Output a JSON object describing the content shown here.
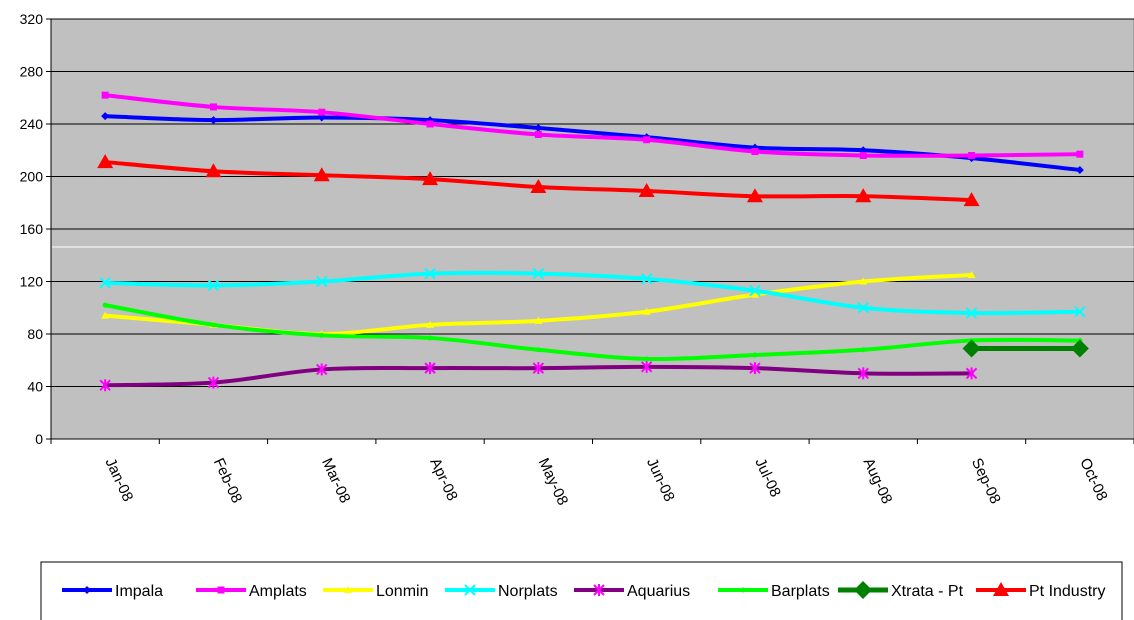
{
  "chart_data": {
    "type": "line",
    "title": "",
    "xlabel": "",
    "ylabel": "",
    "categories": [
      "Jan-08",
      "Feb-08",
      "Mar-08",
      "Apr-08",
      "May-08",
      "Jun-08",
      "Jul-08",
      "Aug-08",
      "Sep-08",
      "Oct-08"
    ],
    "ylim": [
      0,
      320
    ],
    "yticks": [
      0,
      40,
      80,
      120,
      160,
      200,
      240,
      280,
      320
    ],
    "grid": true,
    "legend": "bottom",
    "plot_bg": "#c0c0c0",
    "series": [
      {
        "name": "Impala",
        "color": "#0000ff",
        "marker": "diamond-small",
        "values": [
          246,
          243,
          245,
          243,
          237,
          230,
          222,
          220,
          214,
          205
        ]
      },
      {
        "name": "Amplats",
        "color": "#ff00ff",
        "marker": "square",
        "values": [
          262,
          253,
          249,
          240,
          232,
          228,
          219,
          216,
          216,
          217
        ]
      },
      {
        "name": "Lonmin",
        "color": "#ffff00",
        "marker": "triangle-small",
        "values": [
          94,
          87,
          80,
          87,
          90,
          97,
          110,
          120,
          125,
          null
        ]
      },
      {
        "name": "Norplats",
        "color": "#00ffff",
        "marker": "x",
        "values": [
          119,
          117,
          120,
          126,
          126,
          122,
          113,
          100,
          96,
          97
        ]
      },
      {
        "name": "Aquarius",
        "color": "#800080",
        "marker": "star",
        "markerColor": "#ff00ff",
        "values": [
          41,
          43,
          53,
          54,
          54,
          55,
          54,
          50,
          50,
          null
        ]
      },
      {
        "name": "Barplats",
        "color": "#00ff00",
        "marker": "dot",
        "values": [
          102,
          87,
          79,
          77,
          68,
          61,
          64,
          68,
          75,
          75
        ]
      },
      {
        "name": "Xtrata - Pt",
        "color": "#008000",
        "marker": "diamond",
        "values": [
          null,
          null,
          null,
          null,
          null,
          null,
          null,
          null,
          69,
          69
        ]
      },
      {
        "name": "Pt Industry",
        "color": "#ff0000",
        "marker": "triangle",
        "values": [
          211,
          204,
          201,
          198,
          192,
          189,
          185,
          185,
          182,
          null
        ]
      }
    ]
  }
}
